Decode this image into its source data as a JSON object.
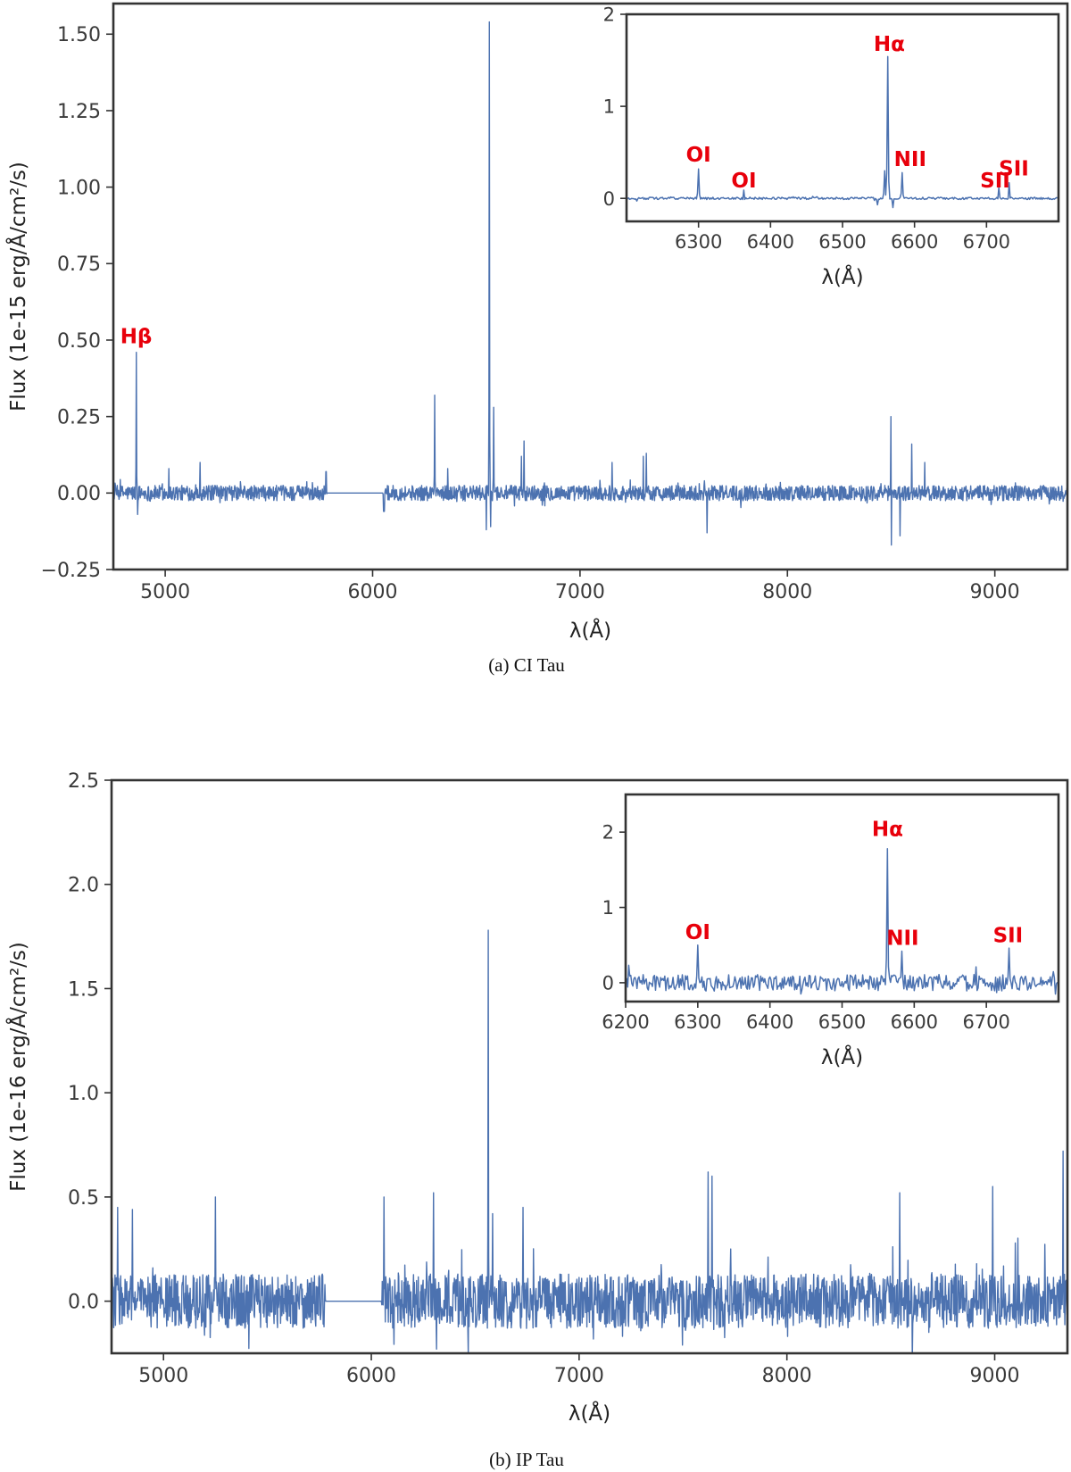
{
  "colors": {
    "line": "#4c72b0",
    "annotation": "#e8000b",
    "axis": "#333333",
    "background": "#ffffff"
  },
  "chart_data": [
    {
      "type": "line",
      "caption": "(a) CI Tau",
      "xlabel": "λ(Å)",
      "ylabel": "Flux (1e-15 erg/Å/cm²/s)",
      "xlim": [
        4750,
        9350
      ],
      "ylim": [
        -0.25,
        1.6
      ],
      "xticks": [
        5000,
        6000,
        7000,
        8000,
        9000
      ],
      "yticks": [
        -0.25,
        0.0,
        0.25,
        0.5,
        0.75,
        1.0,
        1.25,
        1.5
      ],
      "ytick_labels": [
        "−0.25",
        "0.00",
        "0.25",
        "0.50",
        "0.75",
        "1.00",
        "1.25",
        "1.50"
      ],
      "noise_amplitude": 0.025,
      "gap": {
        "from": 5780,
        "to": 6050,
        "level": 0.0
      },
      "edge_steps": [
        {
          "x": 5775,
          "y": 0.07
        },
        {
          "x": 6055,
          "y": -0.06
        }
      ],
      "peaks": [
        {
          "x": 4861,
          "y": 0.46
        },
        {
          "x": 4868,
          "y": -0.07
        },
        {
          "x": 5018,
          "y": 0.08
        },
        {
          "x": 5169,
          "y": 0.1
        },
        {
          "x": 6300,
          "y": 0.32
        },
        {
          "x": 6363,
          "y": 0.08
        },
        {
          "x": 6548,
          "y": -0.12
        },
        {
          "x": 6563,
          "y": 1.54
        },
        {
          "x": 6570,
          "y": -0.11
        },
        {
          "x": 6583,
          "y": 0.28
        },
        {
          "x": 6717,
          "y": 0.12
        },
        {
          "x": 6731,
          "y": 0.17
        },
        {
          "x": 7155,
          "y": 0.1
        },
        {
          "x": 7306,
          "y": 0.12
        },
        {
          "x": 7320,
          "y": 0.13
        },
        {
          "x": 7600,
          "y": 0.04
        },
        {
          "x": 7612,
          "y": -0.13
        },
        {
          "x": 8498,
          "y": 0.25
        },
        {
          "x": 8502,
          "y": -0.17
        },
        {
          "x": 8542,
          "y": -0.14
        },
        {
          "x": 8600,
          "y": 0.16
        },
        {
          "x": 8662,
          "y": 0.1
        }
      ],
      "annotations": [
        {
          "text": "Hβ",
          "x": 4860,
          "y": 0.49
        }
      ],
      "inset": {
        "xlim": [
          6200,
          6800
        ],
        "ylim": [
          -0.25,
          2.0
        ],
        "xticks": [
          6300,
          6400,
          6500,
          6600,
          6700
        ],
        "yticks": [
          0,
          1,
          2
        ],
        "xlabel": "λ(Å)",
        "noise_amplitude": 0.012,
        "peaks": [
          {
            "x": 6300,
            "y": 0.32
          },
          {
            "x": 6363,
            "y": 0.09
          },
          {
            "x": 6548,
            "y": -0.07
          },
          {
            "x": 6558,
            "y": 0.3
          },
          {
            "x": 6563,
            "y": 1.54
          },
          {
            "x": 6570,
            "y": -0.1
          },
          {
            "x": 6583,
            "y": 0.28
          },
          {
            "x": 6717,
            "y": 0.12
          },
          {
            "x": 6731,
            "y": 0.17
          }
        ],
        "annotations": [
          {
            "text": "OI",
            "x": 6300,
            "y": 0.4
          },
          {
            "text": "OI",
            "x": 6363,
            "y": 0.12
          },
          {
            "text": "Hα",
            "x": 6565,
            "y": 1.6
          },
          {
            "text": "NII",
            "x": 6594,
            "y": 0.35
          },
          {
            "text": "SII",
            "x": 6712,
            "y": 0.12
          },
          {
            "text": "SII",
            "x": 6738,
            "y": 0.25
          }
        ]
      }
    },
    {
      "type": "line",
      "caption": "(b) IP Tau",
      "xlabel": "λ(Å)",
      "ylabel": "Flux (1e-16 erg/Å/cm²/s)",
      "xlim": [
        4750,
        9350
      ],
      "ylim": [
        -0.25,
        2.5
      ],
      "xticks": [
        5000,
        6000,
        7000,
        8000,
        9000
      ],
      "yticks": [
        0.0,
        0.5,
        1.0,
        1.5,
        2.0,
        2.5
      ],
      "ytick_labels": [
        "0.0",
        "0.5",
        "1.0",
        "1.5",
        "2.0",
        "2.5"
      ],
      "noise_amplitude": 0.13,
      "gap": {
        "from": 5780,
        "to": 6050,
        "level": 0.0
      },
      "edge_steps": [],
      "peaks": [
        {
          "x": 4780,
          "y": 0.45
        },
        {
          "x": 4850,
          "y": 0.44
        },
        {
          "x": 5250,
          "y": 0.5
        },
        {
          "x": 6060,
          "y": 0.5
        },
        {
          "x": 6300,
          "y": 0.52
        },
        {
          "x": 6563,
          "y": 1.78
        },
        {
          "x": 6583,
          "y": 0.42
        },
        {
          "x": 6731,
          "y": 0.45
        },
        {
          "x": 7620,
          "y": 0.62
        },
        {
          "x": 7640,
          "y": 0.6
        },
        {
          "x": 8542,
          "y": 0.52
        },
        {
          "x": 8990,
          "y": 0.55
        },
        {
          "x": 9330,
          "y": 0.72
        }
      ],
      "annotations": [],
      "inset": {
        "xlim": [
          6200,
          6800
        ],
        "ylim": [
          -0.25,
          2.5
        ],
        "xticks": [
          6200,
          6300,
          6400,
          6500,
          6600,
          6700
        ],
        "yticks": [
          0,
          1,
          2
        ],
        "xlabel": "λ(Å)",
        "noise_amplitude": 0.11,
        "peaks": [
          {
            "x": 6300,
            "y": 0.5
          },
          {
            "x": 6563,
            "y": 1.78
          },
          {
            "x": 6583,
            "y": 0.42
          },
          {
            "x": 6731,
            "y": 0.46
          }
        ],
        "annotations": [
          {
            "text": "OI",
            "x": 6300,
            "y": 0.58
          },
          {
            "text": "Hα",
            "x": 6563,
            "y": 1.95
          },
          {
            "text": "NII",
            "x": 6584,
            "y": 0.5
          },
          {
            "text": "SII",
            "x": 6730,
            "y": 0.54
          }
        ]
      }
    }
  ]
}
